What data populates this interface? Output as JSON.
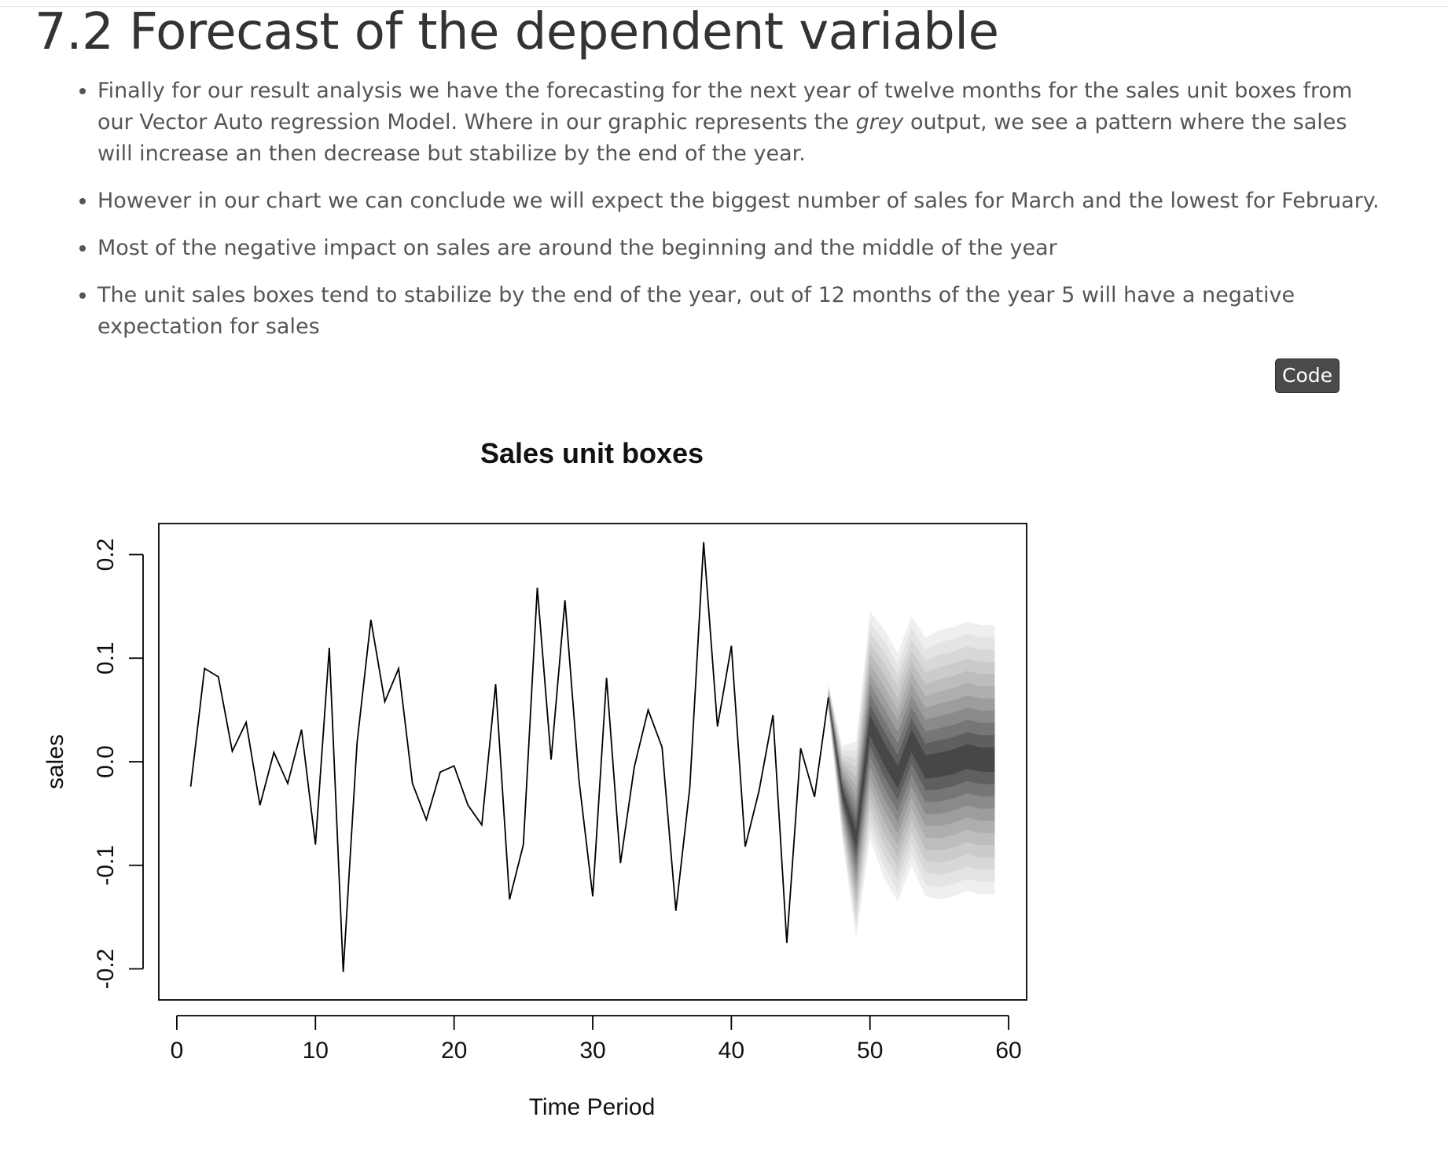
{
  "page": {
    "title": "7.2 Forecast of the dependent variable",
    "bullets": [
      {
        "before": "Finally for our result analysis we have the forecasting for the next year of twelve months for the sales unit boxes from our Vector Auto regression Model. Where in our graphic represents the ",
        "em": "grey",
        "after": " output, we see a pattern where the sales will increase an then decrease but stabilize by the end of the year."
      },
      {
        "text": "However in our chart we can conclude we will expect the biggest number of sales for March and the lowest for February."
      },
      {
        "text": "Most of the negative impact on sales are around the beginning and the middle of the year"
      },
      {
        "text": "The unit sales boxes tend to stabilize by the end of the year, out of 12 months of the year 5 will have a negative expectation for sales"
      }
    ],
    "code_button": "Code"
  },
  "chart_data": {
    "type": "line",
    "title": "Sales unit boxes",
    "xlabel": "Time Period",
    "ylabel": "sales",
    "xlim": [
      -1.3,
      61.3
    ],
    "ylim": [
      -0.23,
      0.23
    ],
    "x_ticks": [
      0,
      10,
      20,
      30,
      40,
      50,
      60
    ],
    "y_ticks": [
      -0.2,
      -0.1,
      0.0,
      0.1,
      0.2
    ],
    "y_tick_labels": [
      "-0.2",
      "-0.1",
      "0.0",
      "0.1",
      "0.2"
    ],
    "grid": false,
    "series": [
      {
        "x": [
          1,
          2,
          3,
          4,
          5,
          6,
          7,
          8,
          9,
          10,
          11,
          12,
          13,
          14,
          15,
          16,
          17,
          18,
          19,
          20,
          21,
          22,
          23,
          24,
          25,
          26,
          27,
          28,
          29,
          30,
          31,
          32,
          33,
          34,
          35,
          36,
          37,
          38,
          39,
          40,
          41,
          42,
          43,
          44,
          45,
          46,
          47
        ],
        "values": [
          -0.024,
          0.09,
          0.082,
          0.01,
          0.038,
          -0.042,
          0.009,
          -0.021,
          0.031,
          -0.08,
          0.11,
          -0.203,
          0.018,
          0.137,
          0.058,
          0.09,
          -0.021,
          -0.056,
          -0.01,
          -0.004,
          -0.042,
          -0.061,
          0.075,
          -0.133,
          -0.08,
          0.168,
          0.002,
          0.156,
          -0.017,
          -0.13,
          0.081,
          -0.098,
          -0.005,
          0.05,
          0.014,
          -0.144,
          -0.025,
          0.212,
          0.034,
          0.112,
          -0.082,
          -0.028,
          0.045,
          -0.175,
          0.013,
          -0.034,
          0.062
        ],
        "color": "#000000"
      }
    ],
    "forecast_fan": {
      "x": [
        47,
        48,
        49,
        50,
        51,
        52,
        53,
        54,
        55,
        56,
        57,
        58,
        59
      ],
      "center": [
        0.062,
        -0.03,
        -0.075,
        0.035,
        0.008,
        -0.015,
        0.02,
        -0.005,
        -0.003,
        0.0,
        0.005,
        0.002,
        0.002
      ],
      "half_widths": [
        0.013,
        0.045,
        0.095,
        0.11,
        0.12,
        0.12,
        0.12,
        0.125,
        0.13,
        0.13,
        0.13,
        0.13,
        0.13
      ],
      "colors": [
        "#efefef",
        "#e4e4e4",
        "#d8d8d8",
        "#cbcbcb",
        "#bdbdbd",
        "#aeaeae",
        "#9d9d9d",
        "#8a8a8a",
        "#767676",
        "#5f5f5f",
        "#474747"
      ]
    }
  }
}
